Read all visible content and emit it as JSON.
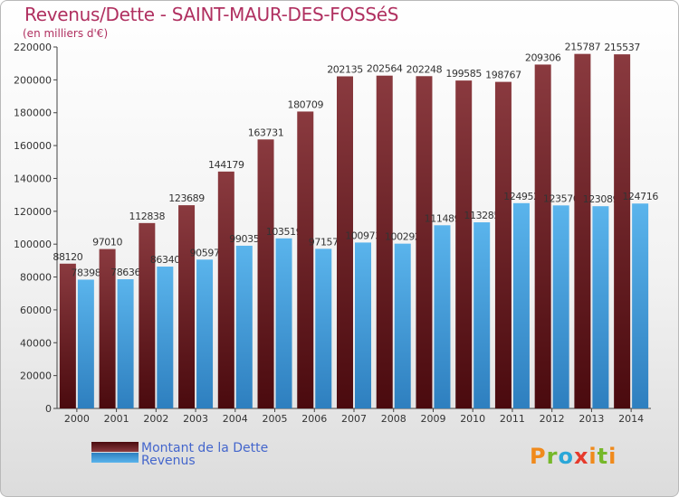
{
  "title": "Revenus/Dette - SAINT-MAUR-DES-FOSSéS",
  "subtitle": "(en milliers d'€)",
  "logo": "Proxiti",
  "colors": {
    "debt_top": "#8a3a3f",
    "debt_bottom": "#4a0a0e",
    "revenue_top": "#5ab4ec",
    "revenue_bottom": "#2e7fbf",
    "title": "#b03060",
    "legend_text": "#4466cc"
  },
  "chart_data": {
    "type": "bar",
    "categories": [
      "2000",
      "2001",
      "2002",
      "2003",
      "2004",
      "2005",
      "2006",
      "2007",
      "2008",
      "2009",
      "2010",
      "2011",
      "2012",
      "2013",
      "2014"
    ],
    "series": [
      {
        "name": "Montant de la Dette",
        "values": [
          88120,
          97010,
          112838,
          123689,
          144179,
          163731,
          180709,
          202135,
          202564,
          202248,
          199585,
          198767,
          209306,
          215787,
          215537
        ]
      },
      {
        "name": "Revenus",
        "values": [
          78398,
          78636,
          86340,
          90597,
          99035,
          103519,
          97157,
          100973,
          100292,
          111489,
          113285,
          124952,
          123570,
          123089,
          124716
        ]
      }
    ],
    "ylim": [
      0,
      220000
    ],
    "yticks": [
      0,
      20000,
      40000,
      60000,
      80000,
      100000,
      120000,
      140000,
      160000,
      180000,
      200000,
      220000
    ],
    "grid": false,
    "legend_position": "bottom-left"
  }
}
